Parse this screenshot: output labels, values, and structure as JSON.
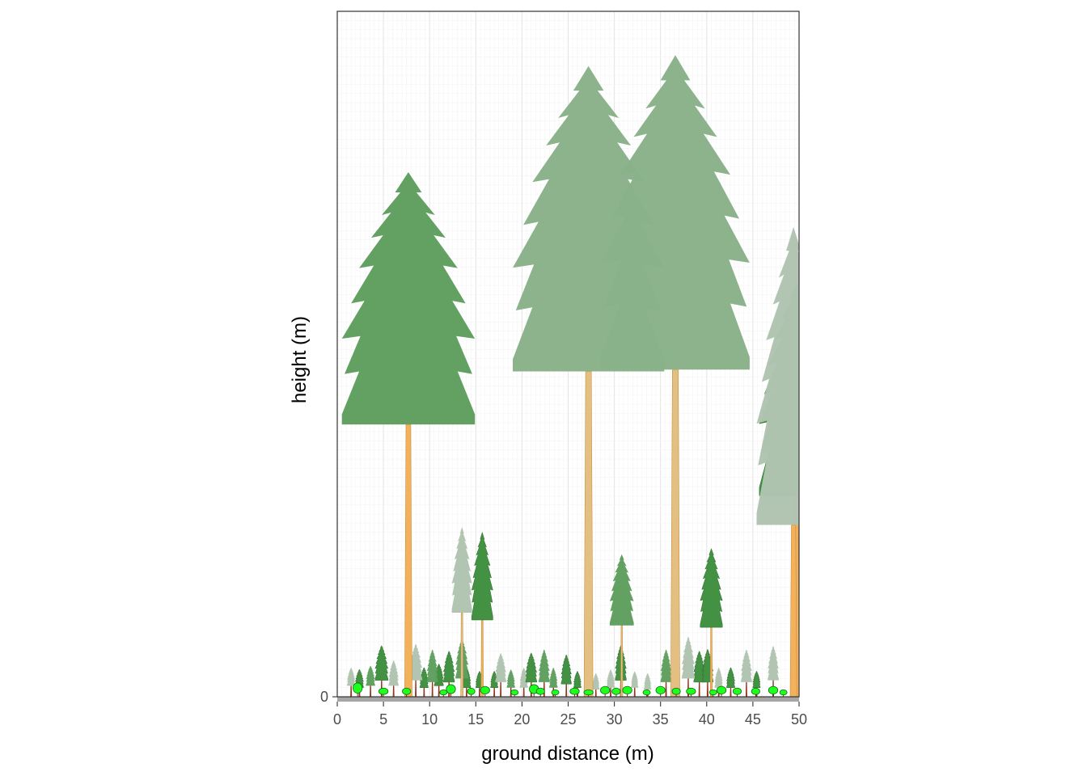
{
  "chart_data": {
    "type": "forest-profile",
    "xlabel": "ground distance (m)",
    "ylabel": "height (m)",
    "xlim": [
      0,
      50
    ],
    "x_ticks": [
      "0",
      "5",
      "10",
      "15",
      "20",
      "25",
      "30",
      "35",
      "40",
      "45",
      "50"
    ],
    "y_ticks": [
      "0"
    ],
    "grid": true,
    "legend": "none",
    "colors": {
      "panel_grid": "#ebebeb",
      "ground": "#a6a6a6",
      "trunk_main": "#f2b15a",
      "trunk_pale": "#e3c081",
      "crown_dark": "#3f8f3f",
      "crown_mid": "#5f9f5f",
      "crown_pale": "#8ab18a",
      "crown_ghost": "#b0c4b0",
      "seedling": "#1fff1f"
    },
    "trees": [
      {
        "x": 7.7,
        "height": 28.7,
        "crown_base": 14.9,
        "crown_width": 14.4,
        "shade": "mid",
        "trunk": "main"
      },
      {
        "x": 27.2,
        "height": 34.5,
        "crown_base": 17.8,
        "crown_width": 16.4,
        "shade": "pale",
        "trunk": "pale"
      },
      {
        "x": 36.6,
        "height": 35.1,
        "crown_base": 17.9,
        "crown_width": 16.1,
        "shade": "pale",
        "trunk": "pale"
      },
      {
        "x": 49.4,
        "height": 25.7,
        "crown_base": 9.4,
        "crown_width": 8.0,
        "shade": "ghost",
        "trunk": "main"
      },
      {
        "x": 49.7,
        "height": 22.6,
        "crown_base": 11.0,
        "crown_width": 8.0,
        "shade": "dark",
        "trunk": "main"
      },
      {
        "x": 13.5,
        "height": 9.3,
        "crown_base": 4.6,
        "crown_width": 2.2,
        "shade": "ghost",
        "trunk": "pale"
      },
      {
        "x": 15.7,
        "height": 9.0,
        "crown_base": 4.2,
        "crown_width": 2.3,
        "shade": "dark",
        "trunk": "main"
      },
      {
        "x": 30.8,
        "height": 7.8,
        "crown_base": 3.9,
        "crown_width": 2.6,
        "shade": "mid",
        "trunk": "pale"
      },
      {
        "x": 40.5,
        "height": 8.1,
        "crown_base": 3.8,
        "crown_width": 2.4,
        "shade": "dark",
        "trunk": "main"
      },
      {
        "x": 1.5,
        "height": 1.6,
        "crown_base": 0.6,
        "crown_width": 0.9,
        "shade": "ghost",
        "trunk": "main"
      },
      {
        "x": 2.4,
        "height": 1.5,
        "crown_base": 0.5,
        "crown_width": 0.9,
        "shade": "dark",
        "trunk": "main"
      },
      {
        "x": 3.6,
        "height": 1.7,
        "crown_base": 0.6,
        "crown_width": 1.0,
        "shade": "mid",
        "trunk": "main"
      },
      {
        "x": 4.8,
        "height": 2.8,
        "crown_base": 0.9,
        "crown_width": 1.4,
        "shade": "dark",
        "trunk": "main"
      },
      {
        "x": 6.1,
        "height": 2.0,
        "crown_base": 0.6,
        "crown_width": 1.1,
        "shade": "ghost",
        "trunk": "main"
      },
      {
        "x": 8.5,
        "height": 2.9,
        "crown_base": 0.9,
        "crown_width": 1.4,
        "shade": "ghost",
        "trunk": "main"
      },
      {
        "x": 9.4,
        "height": 1.6,
        "crown_base": 0.5,
        "crown_width": 0.9,
        "shade": "dark",
        "trunk": "main"
      },
      {
        "x": 10.3,
        "height": 2.6,
        "crown_base": 0.8,
        "crown_width": 1.2,
        "shade": "mid",
        "trunk": "main"
      },
      {
        "x": 11.0,
        "height": 1.8,
        "crown_base": 0.6,
        "crown_width": 1.0,
        "shade": "dark",
        "trunk": "main"
      },
      {
        "x": 12.1,
        "height": 2.5,
        "crown_base": 0.8,
        "crown_width": 1.2,
        "shade": "dark",
        "trunk": "main"
      },
      {
        "x": 13.5,
        "height": 3.2,
        "crown_base": 1.0,
        "crown_width": 1.4,
        "shade": "mid",
        "trunk": "main"
      },
      {
        "x": 14.0,
        "height": 1.6,
        "crown_base": 0.5,
        "crown_width": 0.9,
        "shade": "dark",
        "trunk": "main"
      },
      {
        "x": 15.4,
        "height": 1.4,
        "crown_base": 0.5,
        "crown_width": 0.8,
        "shade": "dark",
        "trunk": "main"
      },
      {
        "x": 17.0,
        "height": 1.4,
        "crown_base": 0.5,
        "crown_width": 0.8,
        "shade": "dark",
        "trunk": "main"
      },
      {
        "x": 17.7,
        "height": 2.4,
        "crown_base": 0.8,
        "crown_width": 1.2,
        "shade": "ghost",
        "trunk": "main"
      },
      {
        "x": 18.8,
        "height": 1.5,
        "crown_base": 0.5,
        "crown_width": 0.9,
        "shade": "mid",
        "trunk": "main"
      },
      {
        "x": 20.2,
        "height": 1.6,
        "crown_base": 0.5,
        "crown_width": 0.9,
        "shade": "ghost",
        "trunk": "main"
      },
      {
        "x": 21.0,
        "height": 2.4,
        "crown_base": 0.8,
        "crown_width": 1.2,
        "shade": "dark",
        "trunk": "main"
      },
      {
        "x": 22.4,
        "height": 2.6,
        "crown_base": 0.8,
        "crown_width": 1.2,
        "shade": "mid",
        "trunk": "main"
      },
      {
        "x": 23.4,
        "height": 1.6,
        "crown_base": 0.5,
        "crown_width": 0.9,
        "shade": "mid",
        "trunk": "main"
      },
      {
        "x": 24.8,
        "height": 2.3,
        "crown_base": 0.7,
        "crown_width": 1.1,
        "shade": "dark",
        "trunk": "main"
      },
      {
        "x": 26.0,
        "height": 1.4,
        "crown_base": 0.5,
        "crown_width": 0.8,
        "shade": "dark",
        "trunk": "main"
      },
      {
        "x": 28.0,
        "height": 1.3,
        "crown_base": 0.4,
        "crown_width": 0.8,
        "shade": "ghost",
        "trunk": "main"
      },
      {
        "x": 29.6,
        "height": 1.5,
        "crown_base": 0.5,
        "crown_width": 0.9,
        "shade": "ghost",
        "trunk": "main"
      },
      {
        "x": 30.7,
        "height": 2.8,
        "crown_base": 0.9,
        "crown_width": 1.2,
        "shade": "dark",
        "trunk": "main"
      },
      {
        "x": 32.2,
        "height": 1.4,
        "crown_base": 0.5,
        "crown_width": 0.8,
        "shade": "ghost",
        "trunk": "main"
      },
      {
        "x": 33.6,
        "height": 1.3,
        "crown_base": 0.4,
        "crown_width": 0.8,
        "shade": "ghost",
        "trunk": "main"
      },
      {
        "x": 35.6,
        "height": 2.6,
        "crown_base": 0.8,
        "crown_width": 1.2,
        "shade": "mid",
        "trunk": "main"
      },
      {
        "x": 38.0,
        "height": 3.3,
        "crown_base": 1.0,
        "crown_width": 1.4,
        "shade": "ghost",
        "trunk": "main"
      },
      {
        "x": 39.2,
        "height": 2.5,
        "crown_base": 0.8,
        "crown_width": 1.2,
        "shade": "dark",
        "trunk": "main"
      },
      {
        "x": 40.1,
        "height": 2.6,
        "crown_base": 0.8,
        "crown_width": 1.2,
        "shade": "dark",
        "trunk": "main"
      },
      {
        "x": 41.3,
        "height": 1.6,
        "crown_base": 0.5,
        "crown_width": 0.9,
        "shade": "ghost",
        "trunk": "main"
      },
      {
        "x": 42.6,
        "height": 1.6,
        "crown_base": 0.5,
        "crown_width": 0.9,
        "shade": "dark",
        "trunk": "main"
      },
      {
        "x": 44.3,
        "height": 2.6,
        "crown_base": 0.8,
        "crown_width": 1.2,
        "shade": "ghost",
        "trunk": "main"
      },
      {
        "x": 45.4,
        "height": 1.4,
        "crown_base": 0.5,
        "crown_width": 0.8,
        "shade": "dark",
        "trunk": "main"
      },
      {
        "x": 47.2,
        "height": 2.8,
        "crown_base": 0.9,
        "crown_width": 1.2,
        "shade": "ghost",
        "trunk": "main"
      }
    ],
    "seedlings": [
      {
        "x": 2.2,
        "height": 0.8,
        "width": 1.0
      },
      {
        "x": 5.0,
        "height": 0.5,
        "width": 1.0
      },
      {
        "x": 7.5,
        "height": 0.5,
        "width": 0.9
      },
      {
        "x": 11.5,
        "height": 0.4,
        "width": 0.8
      },
      {
        "x": 12.3,
        "height": 0.7,
        "width": 1.0
      },
      {
        "x": 14.5,
        "height": 0.5,
        "width": 0.8
      },
      {
        "x": 16.0,
        "height": 0.6,
        "width": 1.0
      },
      {
        "x": 19.2,
        "height": 0.4,
        "width": 0.8
      },
      {
        "x": 21.3,
        "height": 0.7,
        "width": 1.0
      },
      {
        "x": 22.0,
        "height": 0.5,
        "width": 0.9
      },
      {
        "x": 23.6,
        "height": 0.4,
        "width": 0.8
      },
      {
        "x": 25.7,
        "height": 0.5,
        "width": 1.0
      },
      {
        "x": 27.2,
        "height": 0.4,
        "width": 1.0
      },
      {
        "x": 29.0,
        "height": 0.6,
        "width": 1.0
      },
      {
        "x": 30.2,
        "height": 0.5,
        "width": 0.9
      },
      {
        "x": 31.4,
        "height": 0.6,
        "width": 1.0
      },
      {
        "x": 33.5,
        "height": 0.4,
        "width": 0.8
      },
      {
        "x": 35.0,
        "height": 0.6,
        "width": 1.0
      },
      {
        "x": 36.7,
        "height": 0.5,
        "width": 0.9
      },
      {
        "x": 38.3,
        "height": 0.5,
        "width": 1.0
      },
      {
        "x": 40.7,
        "height": 0.4,
        "width": 0.8
      },
      {
        "x": 41.6,
        "height": 0.6,
        "width": 1.0
      },
      {
        "x": 43.3,
        "height": 0.5,
        "width": 0.9
      },
      {
        "x": 45.3,
        "height": 0.5,
        "width": 0.9
      },
      {
        "x": 47.2,
        "height": 0.6,
        "width": 1.0
      },
      {
        "x": 48.3,
        "height": 0.4,
        "width": 0.8
      }
    ]
  }
}
